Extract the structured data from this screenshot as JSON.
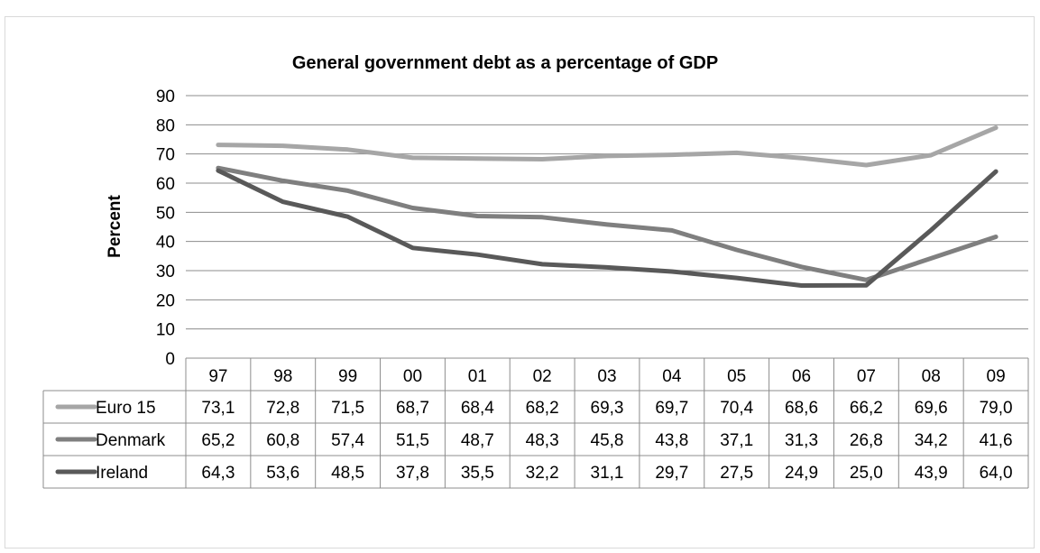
{
  "chart_data": {
    "type": "line",
    "title": "General government debt as a percentage of GDP",
    "ylabel": "Percent",
    "xlabel": "",
    "ylim": [
      0,
      90
    ],
    "yticks": [
      0,
      10,
      20,
      30,
      40,
      50,
      60,
      70,
      80,
      90
    ],
    "grid": true,
    "legend": "data-table-left",
    "categories": [
      "97",
      "98",
      "99",
      "00",
      "01",
      "02",
      "03",
      "04",
      "05",
      "06",
      "07",
      "08",
      "09"
    ],
    "series": [
      {
        "name": "Euro 15",
        "color": "#a6a6a6",
        "values": [
          73.1,
          72.8,
          71.5,
          68.7,
          68.4,
          68.2,
          69.3,
          69.7,
          70.4,
          68.6,
          66.2,
          69.6,
          79.0
        ],
        "labels": [
          "73,1",
          "72,8",
          "71,5",
          "68,7",
          "68,4",
          "68,2",
          "69,3",
          "69,7",
          "70,4",
          "68,6",
          "66,2",
          "69,6",
          "79,0"
        ]
      },
      {
        "name": "Denmark",
        "color": "#7f7f7f",
        "values": [
          65.2,
          60.8,
          57.4,
          51.5,
          48.7,
          48.3,
          45.8,
          43.8,
          37.1,
          31.3,
          26.8,
          34.2,
          41.6
        ],
        "labels": [
          "65,2",
          "60,8",
          "57,4",
          "51,5",
          "48,7",
          "48,3",
          "45,8",
          "43,8",
          "37,1",
          "31,3",
          "26,8",
          "34,2",
          "41,6"
        ]
      },
      {
        "name": "Ireland",
        "color": "#595959",
        "values": [
          64.3,
          53.6,
          48.5,
          37.8,
          35.5,
          32.2,
          31.1,
          29.7,
          27.5,
          24.9,
          25.0,
          43.9,
          64.0
        ],
        "labels": [
          "64,3",
          "53,6",
          "48,5",
          "37,8",
          "35,5",
          "32,2",
          "31,1",
          "29,7",
          "27,5",
          "24,9",
          "25,0",
          "43,9",
          "64,0"
        ]
      }
    ]
  }
}
